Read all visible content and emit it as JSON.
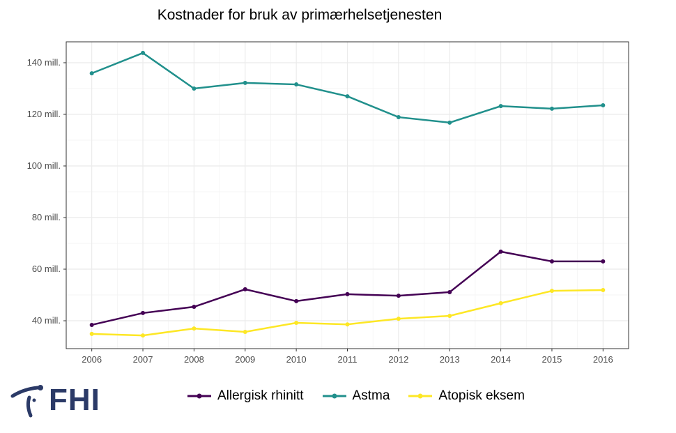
{
  "chart_data": {
    "type": "line",
    "title": "Kostnader for bruk av primærhelsetjenesten",
    "xlabel": "",
    "ylabel": "",
    "x": [
      2006,
      2007,
      2008,
      2009,
      2010,
      2011,
      2012,
      2013,
      2014,
      2015,
      2016
    ],
    "ylim": [
      29.2,
      148.1
    ],
    "xlim": [
      2005.5,
      2016.5
    ],
    "yticks": [
      40,
      60,
      80,
      100,
      120,
      140
    ],
    "ytick_labels": [
      "40 mill.",
      "60 mill.",
      "80 mill.",
      "100 mill.",
      "120 mill.",
      "140 mill."
    ],
    "xtick_labels": [
      "2006",
      "2007",
      "2008",
      "2009",
      "2010",
      "2011",
      "2012",
      "2013",
      "2014",
      "2015",
      "2016"
    ],
    "grid": true,
    "legend_position": "bottom",
    "series": [
      {
        "name": "Allergisk rhinitt",
        "color": "#440154",
        "values": [
          38.4,
          43.0,
          45.4,
          52.2,
          47.6,
          50.3,
          49.7,
          51.1,
          66.8,
          63.0,
          63.0
        ]
      },
      {
        "name": "Astma",
        "color": "#21908C",
        "values": [
          135.9,
          143.8,
          130.0,
          132.2,
          131.6,
          127.0,
          118.9,
          116.8,
          123.2,
          122.2,
          123.5
        ]
      },
      {
        "name": "Atopisk eksem",
        "color": "#FDE725",
        "values": [
          34.9,
          34.3,
          37.0,
          35.7,
          39.2,
          38.6,
          40.8,
          41.9,
          46.8,
          51.6,
          51.9
        ]
      }
    ]
  },
  "logo": {
    "text": "FHI"
  }
}
